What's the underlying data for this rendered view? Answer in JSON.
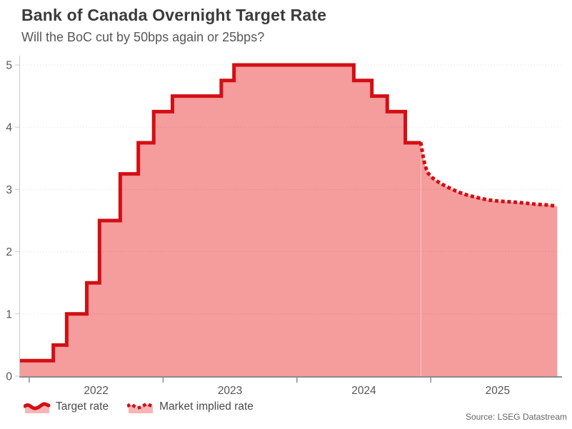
{
  "header": {
    "title": "Bank of Canada Overnight Target Rate",
    "subtitle": "Will the BoC cut by 50bps again or 25bps?"
  },
  "chart_data": {
    "type": "line",
    "title": "Bank of Canada Overnight Target Rate",
    "subtitle": "Will the BoC cut by 50bps again or 25bps?",
    "xlabel": "",
    "ylabel": "",
    "xlim": [
      2021.931,
      2025.97
    ],
    "ylim": [
      0,
      5
    ],
    "yticks": [
      0,
      1,
      2,
      3,
      4,
      5
    ],
    "xticks": [
      2022,
      2023,
      2024,
      2025
    ],
    "xtick_labels": [
      "2022",
      "2023",
      "2024",
      "2025"
    ],
    "grid": "horizontal-dotted",
    "legend_position": "bottom-left",
    "colors": {
      "line_red": "#d30f14",
      "fill_pink": "#f59c9c",
      "axis_line": "#8c8c8c",
      "spine": "#c9c9c9",
      "tick_text": "#555555"
    },
    "series": [
      {
        "name": "Target rate",
        "style": "step-solid",
        "area": true,
        "points": [
          [
            2021.931,
            0.25
          ],
          [
            2022.18,
            0.5
          ],
          [
            2022.28,
            1.0
          ],
          [
            2022.43,
            1.5
          ],
          [
            2022.525,
            2.5
          ],
          [
            2022.68,
            3.25
          ],
          [
            2022.815,
            3.75
          ],
          [
            2022.93,
            4.25
          ],
          [
            2023.07,
            4.5
          ],
          [
            2023.435,
            4.75
          ],
          [
            2023.53,
            5.0
          ],
          [
            2024.425,
            4.75
          ],
          [
            2024.56,
            4.5
          ],
          [
            2024.675,
            4.25
          ],
          [
            2024.81,
            3.75
          ],
          [
            2024.927,
            3.75
          ]
        ]
      },
      {
        "name": "Market implied rate",
        "style": "dotted-line",
        "area": true,
        "points": [
          [
            2024.927,
            3.73
          ],
          [
            2024.943,
            3.53
          ],
          [
            2024.959,
            3.37
          ],
          [
            2024.98,
            3.26
          ],
          [
            2025.017,
            3.18
          ],
          [
            2025.07,
            3.1
          ],
          [
            2025.134,
            3.03
          ],
          [
            2025.203,
            2.96
          ],
          [
            2025.272,
            2.91
          ],
          [
            2025.346,
            2.87
          ],
          [
            2025.431,
            2.83
          ],
          [
            2025.521,
            2.81
          ],
          [
            2025.611,
            2.8
          ],
          [
            2025.707,
            2.78
          ],
          [
            2025.797,
            2.76
          ],
          [
            2025.876,
            2.75
          ],
          [
            2025.945,
            2.73
          ]
        ]
      }
    ]
  },
  "legend": {
    "items": [
      {
        "label": "Target rate",
        "swatch": "solid-area-line-icon"
      },
      {
        "label": "Market implied rate",
        "swatch": "dotted-area-line-icon"
      }
    ]
  },
  "source": {
    "text": "Source: LSEG Datastream"
  }
}
